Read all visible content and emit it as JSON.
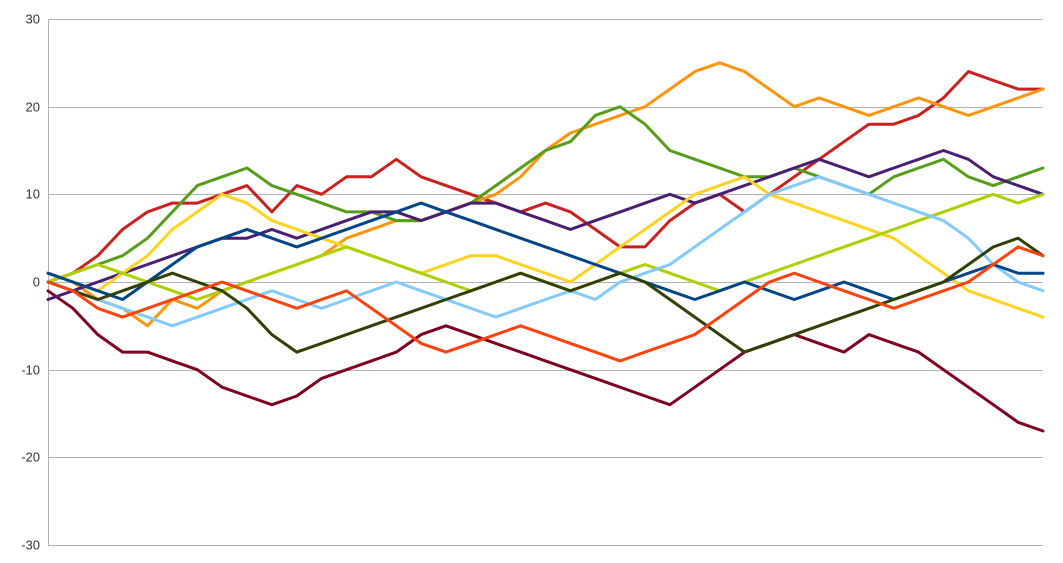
{
  "chart_data": {
    "type": "line",
    "title": "",
    "xlabel": "",
    "ylabel": "",
    "ylim": [
      -30,
      30
    ],
    "y_ticks": [
      "30",
      "20",
      "10",
      "0",
      "-10",
      "-20",
      "-30"
    ],
    "grid": true,
    "legend": "none",
    "x": [
      0,
      10,
      20,
      30,
      40,
      50,
      60,
      70,
      80,
      90,
      100,
      110,
      120,
      130,
      140,
      150,
      160,
      170,
      180,
      190,
      200,
      210,
      220,
      230,
      240,
      250,
      260,
      270,
      280,
      290,
      300,
      310,
      320,
      330,
      340,
      350,
      360,
      370,
      380,
      390,
      400
    ],
    "series": [
      {
        "color": "#c9211e",
        "values": [
          0,
          1,
          3,
          6,
          8,
          9,
          9,
          10,
          11,
          8,
          11,
          10,
          12,
          12,
          14,
          12,
          11,
          10,
          9,
          8,
          9,
          8,
          6,
          4,
          4,
          7,
          9,
          10,
          8,
          10,
          12,
          14,
          16,
          18,
          18,
          19,
          21,
          24,
          23,
          22,
          22
        ]
      },
      {
        "color": "#ff950e",
        "values": [
          1,
          0,
          -2,
          -3,
          -5,
          -2,
          -3,
          -1,
          0,
          1,
          2,
          3,
          5,
          6,
          7,
          7,
          8,
          9,
          10,
          12,
          15,
          17,
          18,
          19,
          20,
          22,
          24,
          25,
          24,
          22,
          20,
          21,
          20,
          19,
          20,
          21,
          20,
          19,
          20,
          21,
          22
        ]
      },
      {
        "color": "#579d1c",
        "values": [
          0,
          1,
          2,
          3,
          5,
          8,
          11,
          12,
          13,
          11,
          10,
          9,
          8,
          8,
          7,
          7,
          8,
          9,
          11,
          13,
          15,
          16,
          19,
          20,
          18,
          15,
          14,
          13,
          12,
          12,
          13,
          12,
          11,
          10,
          12,
          13,
          14,
          12,
          11,
          12,
          13
        ]
      },
      {
        "color": "#7e0021",
        "values": [
          -1,
          -3,
          -6,
          -8,
          -8,
          -9,
          -10,
          -12,
          -13,
          -14,
          -13,
          -11,
          -10,
          -9,
          -8,
          -6,
          -5,
          -6,
          -7,
          -8,
          -9,
          -10,
          -11,
          -12,
          -13,
          -14,
          -12,
          -10,
          -8,
          -7,
          -6,
          -7,
          -8,
          -6,
          -7,
          -8,
          -10,
          -12,
          -14,
          -16,
          -17
        ]
      },
      {
        "color": "#4b1f6f",
        "values": [
          -2,
          -1,
          0,
          1,
          2,
          3,
          4,
          5,
          5,
          6,
          5,
          6,
          7,
          8,
          8,
          7,
          8,
          9,
          9,
          8,
          7,
          6,
          7,
          8,
          9,
          10,
          9,
          10,
          11,
          12,
          13,
          14,
          13,
          12,
          13,
          14,
          15,
          14,
          12,
          11,
          10
        ]
      },
      {
        "color": "#ffd320",
        "values": [
          1,
          0,
          -1,
          1,
          3,
          6,
          8,
          10,
          9,
          7,
          6,
          5,
          4,
          3,
          2,
          1,
          2,
          3,
          3,
          2,
          1,
          0,
          2,
          4,
          6,
          8,
          10,
          11,
          12,
          10,
          9,
          8,
          7,
          6,
          5,
          3,
          1,
          -1,
          -2,
          -3,
          -4
        ]
      },
      {
        "color": "#aecf00",
        "values": [
          0,
          1,
          2,
          1,
          0,
          -1,
          -2,
          -1,
          0,
          1,
          2,
          3,
          4,
          3,
          2,
          1,
          0,
          -1,
          0,
          1,
          0,
          -1,
          0,
          1,
          2,
          1,
          0,
          -1,
          0,
          1,
          2,
          3,
          4,
          5,
          6,
          7,
          8,
          9,
          10,
          9,
          10
        ]
      },
      {
        "color": "#83caff",
        "values": [
          0,
          -1,
          -2,
          -3,
          -4,
          -5,
          -4,
          -3,
          -2,
          -1,
          -2,
          -3,
          -2,
          -1,
          0,
          -1,
          -2,
          -3,
          -4,
          -3,
          -2,
          -1,
          -2,
          0,
          1,
          2,
          4,
          6,
          8,
          10,
          11,
          12,
          11,
          10,
          9,
          8,
          7,
          5,
          2,
          0,
          -1
        ]
      },
      {
        "color": "#004586",
        "values": [
          1,
          0,
          -1,
          -2,
          0,
          2,
          4,
          5,
          6,
          5,
          4,
          5,
          6,
          7,
          8,
          9,
          8,
          7,
          6,
          5,
          4,
          3,
          2,
          1,
          0,
          -1,
          -2,
          -1,
          0,
          -1,
          -2,
          -1,
          0,
          -1,
          -2,
          -1,
          0,
          1,
          2,
          1,
          1
        ]
      },
      {
        "color": "#314004",
        "values": [
          0,
          -1,
          -2,
          -1,
          0,
          1,
          0,
          -1,
          -3,
          -6,
          -8,
          -7,
          -6,
          -5,
          -4,
          -3,
          -2,
          -1,
          0,
          1,
          0,
          -1,
          0,
          1,
          0,
          -2,
          -4,
          -6,
          -8,
          -7,
          -6,
          -5,
          -4,
          -3,
          -2,
          -1,
          0,
          2,
          4,
          5,
          3
        ]
      },
      {
        "color": "#ff420e",
        "values": [
          0,
          -1,
          -3,
          -4,
          -3,
          -2,
          -1,
          0,
          -1,
          -2,
          -3,
          -2,
          -1,
          -3,
          -5,
          -7,
          -8,
          -7,
          -6,
          -5,
          -6,
          -7,
          -8,
          -9,
          -8,
          -7,
          -6,
          -4,
          -2,
          0,
          1,
          0,
          -1,
          -2,
          -3,
          -2,
          -1,
          0,
          2,
          4,
          3
        ]
      }
    ]
  }
}
